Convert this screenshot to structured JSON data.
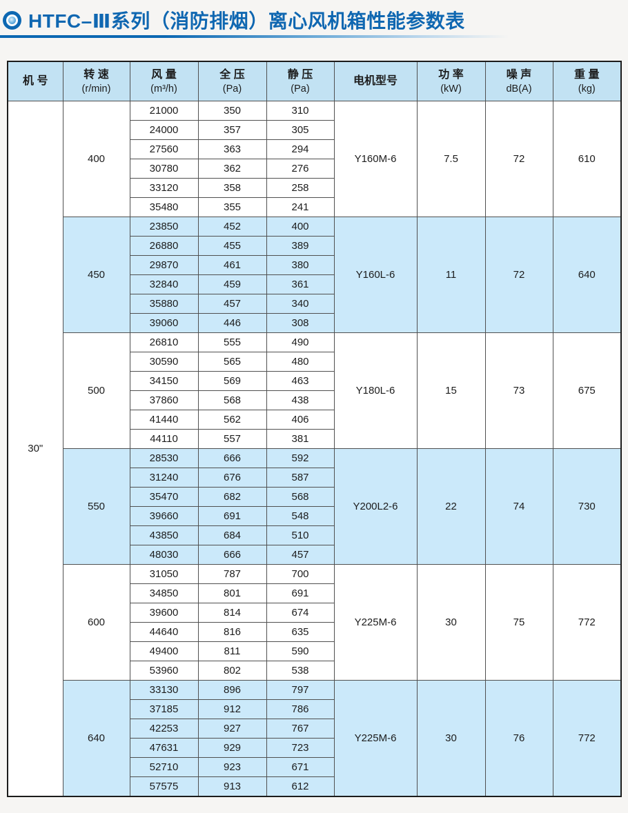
{
  "page": {
    "title": "HTFC–Ⅲ系列（消防排烟）离心风机箱性能参数表",
    "title_icon": "concentric-circles-bullet"
  },
  "colors": {
    "accent_blue": "#0f67b1",
    "header_bg": "#c2e2f3",
    "row_highlight_bg": "#cbe9fa",
    "grid_border": "#4f4f4f"
  },
  "table": {
    "machine": "30\"",
    "columns": [
      {
        "label": "机 号",
        "unit": ""
      },
      {
        "label": "转 速",
        "unit": "(r/min)"
      },
      {
        "label": "风 量",
        "unit": "(m³/h)"
      },
      {
        "label": "全 压",
        "unit": "(Pa)"
      },
      {
        "label": "静 压",
        "unit": "(Pa)"
      },
      {
        "label": "电机型号",
        "unit": ""
      },
      {
        "label": "功 率",
        "unit": "(kW)"
      },
      {
        "label": "噪 声",
        "unit": "dB(A)"
      },
      {
        "label": "重 量",
        "unit": "(kg)"
      }
    ],
    "groups": [
      {
        "speed": "400",
        "highlight": false,
        "motor": "Y160M-6",
        "power": "7.5",
        "noise": "72",
        "weight": "610",
        "rows": [
          {
            "flow": "21000",
            "total": "350",
            "static": "310"
          },
          {
            "flow": "24000",
            "total": "357",
            "static": "305"
          },
          {
            "flow": "27560",
            "total": "363",
            "static": "294"
          },
          {
            "flow": "30780",
            "total": "362",
            "static": "276"
          },
          {
            "flow": "33120",
            "total": "358",
            "static": "258"
          },
          {
            "flow": "35480",
            "total": "355",
            "static": "241"
          }
        ]
      },
      {
        "speed": "450",
        "highlight": true,
        "motor": "Y160L-6",
        "power": "11",
        "noise": "72",
        "weight": "640",
        "rows": [
          {
            "flow": "23850",
            "total": "452",
            "static": "400"
          },
          {
            "flow": "26880",
            "total": "455",
            "static": "389"
          },
          {
            "flow": "29870",
            "total": "461",
            "static": "380"
          },
          {
            "flow": "32840",
            "total": "459",
            "static": "361"
          },
          {
            "flow": "35880",
            "total": "457",
            "static": "340"
          },
          {
            "flow": "39060",
            "total": "446",
            "static": "308"
          }
        ]
      },
      {
        "speed": "500",
        "highlight": false,
        "motor": "Y180L-6",
        "power": "15",
        "noise": "73",
        "weight": "675",
        "rows": [
          {
            "flow": "26810",
            "total": "555",
            "static": "490"
          },
          {
            "flow": "30590",
            "total": "565",
            "static": "480"
          },
          {
            "flow": "34150",
            "total": "569",
            "static": "463"
          },
          {
            "flow": "37860",
            "total": "568",
            "static": "438"
          },
          {
            "flow": "41440",
            "total": "562",
            "static": "406"
          },
          {
            "flow": "44110",
            "total": "557",
            "static": "381"
          }
        ]
      },
      {
        "speed": "550",
        "highlight": true,
        "motor": "Y200L2-6",
        "power": "22",
        "noise": "74",
        "weight": "730",
        "rows": [
          {
            "flow": "28530",
            "total": "666",
            "static": "592"
          },
          {
            "flow": "31240",
            "total": "676",
            "static": "587"
          },
          {
            "flow": "35470",
            "total": "682",
            "static": "568"
          },
          {
            "flow": "39660",
            "total": "691",
            "static": "548"
          },
          {
            "flow": "43850",
            "total": "684",
            "static": "510"
          },
          {
            "flow": "48030",
            "total": "666",
            "static": "457"
          }
        ]
      },
      {
        "speed": "600",
        "highlight": false,
        "motor": "Y225M-6",
        "power": "30",
        "noise": "75",
        "weight": "772",
        "rows": [
          {
            "flow": "31050",
            "total": "787",
            "static": "700"
          },
          {
            "flow": "34850",
            "total": "801",
            "static": "691"
          },
          {
            "flow": "39600",
            "total": "814",
            "static": "674"
          },
          {
            "flow": "44640",
            "total": "816",
            "static": "635"
          },
          {
            "flow": "49400",
            "total": "811",
            "static": "590"
          },
          {
            "flow": "53960",
            "total": "802",
            "static": "538"
          }
        ]
      },
      {
        "speed": "640",
        "highlight": true,
        "motor": "Y225M-6",
        "power": "30",
        "noise": "76",
        "weight": "772",
        "rows": [
          {
            "flow": "33130",
            "total": "896",
            "static": "797"
          },
          {
            "flow": "37185",
            "total": "912",
            "static": "786"
          },
          {
            "flow": "42253",
            "total": "927",
            "static": "767"
          },
          {
            "flow": "47631",
            "total": "929",
            "static": "723"
          },
          {
            "flow": "52710",
            "total": "923",
            "static": "671"
          },
          {
            "flow": "57575",
            "total": "913",
            "static": "612"
          }
        ]
      }
    ]
  }
}
